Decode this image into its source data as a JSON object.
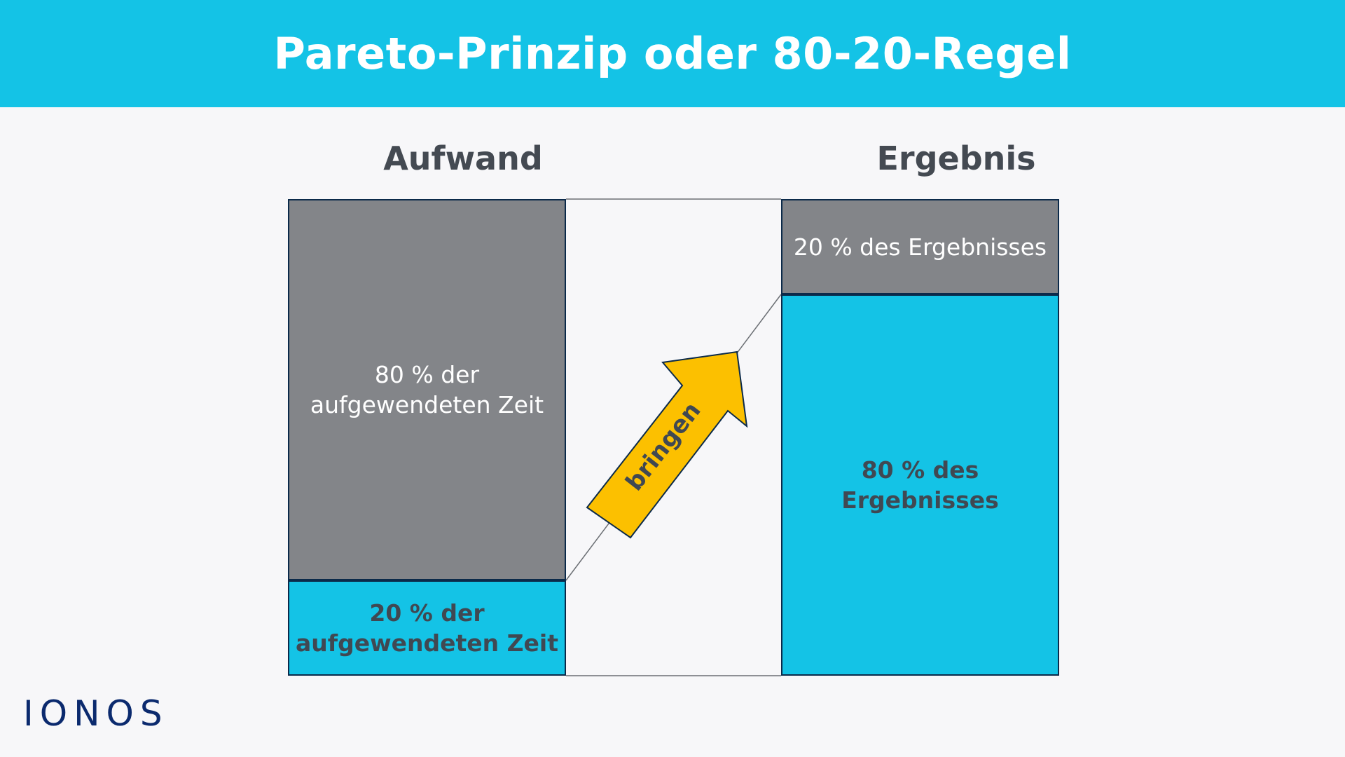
{
  "title": "Pareto-Prinzip oder 80-20-Regel",
  "left_heading": "Aufwand",
  "right_heading": "Ergebnis",
  "left_top_block": {
    "line1": "80 % der",
    "line2": "aufgewendeten Zeit"
  },
  "left_bottom_block": {
    "line1": "20 % der",
    "line2": "aufgewendeten Zeit"
  },
  "right_top_block": {
    "line1": "20 % des Ergebnisses"
  },
  "right_bottom_block": {
    "line1": "80 % des",
    "line2": "Ergebnisses"
  },
  "arrow_label": "bringen",
  "logo": "IONOS",
  "colors": {
    "title_bar": "#14c3e6",
    "background": "#f7f7f9",
    "gray_block": "#838589",
    "blue_block": "#14c3e6",
    "block_border": "#0b2a4a",
    "arrow_fill": "#fcc000",
    "arrow_border": "#0b2a4a",
    "heading_text": "#444a52",
    "dark_text": "#404852",
    "light_text": "#ffffff",
    "connector_line": "#6b6f74",
    "logo": "#0b2a6e"
  }
}
